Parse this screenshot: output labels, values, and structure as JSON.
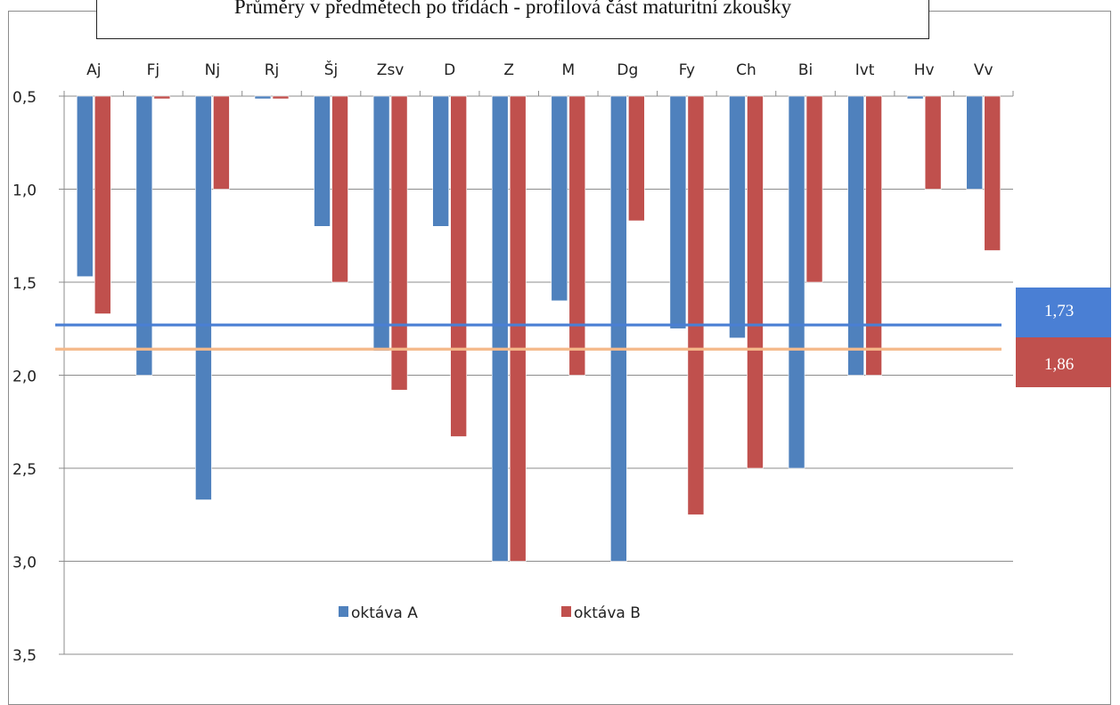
{
  "title": "Průměry v předmětech po třídách - profilová část maturitní zkoušky",
  "chart_data": {
    "type": "bar",
    "title": "Průměry v předmětech po třídách - profilová část maturitní zkoušky",
    "categories": [
      "Aj",
      "Fj",
      "Nj",
      "Rj",
      "Šj",
      "Zsv",
      "D",
      "Z",
      "M",
      "Dg",
      "Fy",
      "Ch",
      "Bi",
      "Ivt",
      "Hv",
      "Vv"
    ],
    "series": [
      {
        "name": "oktáva A",
        "color": "#4f81bd",
        "values": [
          1.47,
          2.0,
          2.67,
          0.5,
          1.2,
          1.87,
          1.2,
          3.0,
          1.6,
          3.0,
          1.75,
          1.8,
          2.5,
          2.0,
          0.5,
          1.0
        ]
      },
      {
        "name": "oktáva B",
        "color": "#c0504d",
        "values": [
          1.67,
          0.5,
          1.0,
          0.5,
          1.5,
          2.08,
          2.33,
          3.0,
          2.0,
          1.17,
          2.75,
          2.5,
          1.5,
          2.0,
          1.0,
          1.33
        ]
      }
    ],
    "y_axis": {
      "reversed": true,
      "min": 0.5,
      "max": 3.5,
      "step": 0.5
    },
    "y_ticks": [
      "0,5",
      "1,0",
      "1,5",
      "2,0",
      "2,5",
      "3,0",
      "3,5"
    ],
    "x_axis_position": "top",
    "grid": true,
    "legend_position": "bottom-center",
    "average_lines": [
      {
        "series": "oktáva A",
        "value": 1.73,
        "label": "1,73",
        "line_color": "#4a7fd4",
        "box_color": "#4a7fd4"
      },
      {
        "series": "oktáva B",
        "value": 1.86,
        "label": "1,86",
        "line_color": "#f5b98a",
        "box_color": "#c0504d"
      }
    ]
  }
}
